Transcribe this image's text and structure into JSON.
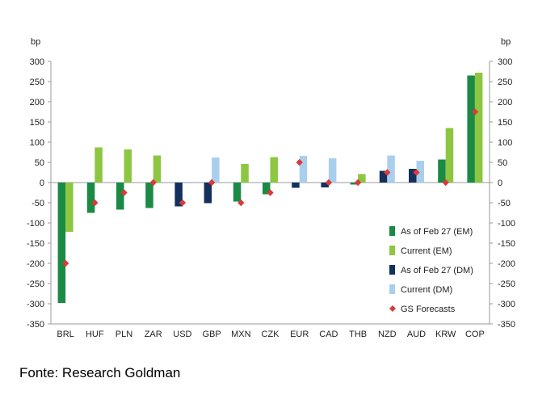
{
  "caption": "Fonte: Research Goldman",
  "colors": {
    "feb_em": "#1a8a45",
    "cur_em": "#8dc641",
    "feb_dm": "#13315c",
    "cur_dm": "#a9cfee",
    "forecast": "#d93a3a",
    "axis": "#9a9a9a"
  },
  "chart_data": {
    "type": "bar",
    "ylabel_left": "bp",
    "ylabel_right": "bp",
    "ylim": [
      -350,
      300
    ],
    "yticks": [
      300,
      250,
      200,
      150,
      100,
      50,
      0,
      -50,
      -100,
      -150,
      -200,
      -250,
      -300,
      -350
    ],
    "categories": [
      "BRL",
      "HUF",
      "PLN",
      "ZAR",
      "USD",
      "GBP",
      "MXN",
      "CZK",
      "EUR",
      "CAD",
      "THB",
      "NZD",
      "AUD",
      "KRW",
      "COP"
    ],
    "series": [
      {
        "name": "As of Feb 27 (EM)",
        "key": "feb_em",
        "values": [
          -298,
          -75,
          -67,
          -63,
          null,
          null,
          -47,
          -29,
          null,
          null,
          -5,
          null,
          null,
          57,
          265
        ]
      },
      {
        "name": "Current (EM)",
        "key": "cur_em",
        "values": [
          -122,
          87,
          82,
          67,
          null,
          null,
          46,
          63,
          null,
          null,
          21,
          null,
          null,
          135,
          272
        ]
      },
      {
        "name": "As of Feb 27 (DM)",
        "key": "feb_dm",
        "values": [
          null,
          null,
          null,
          null,
          -59,
          -51,
          null,
          null,
          -13,
          -12,
          null,
          29,
          34,
          null,
          null
        ]
      },
      {
        "name": "Current (DM)",
        "key": "cur_dm",
        "values": [
          null,
          null,
          null,
          null,
          2,
          62,
          null,
          null,
          66,
          60,
          null,
          67,
          54,
          null,
          null
        ]
      }
    ],
    "forecast": {
      "name": "GS Forecasts",
      "values": [
        -200,
        -50,
        -25,
        0,
        -50,
        0,
        -50,
        -25,
        50,
        0,
        0,
        25,
        25,
        0,
        175
      ]
    },
    "legend": [
      "As of Feb 27 (EM)",
      "Current (EM)",
      "As of Feb 27 (DM)",
      "Current (DM)",
      "GS Forecasts"
    ],
    "legend_position": "bottom-right"
  }
}
